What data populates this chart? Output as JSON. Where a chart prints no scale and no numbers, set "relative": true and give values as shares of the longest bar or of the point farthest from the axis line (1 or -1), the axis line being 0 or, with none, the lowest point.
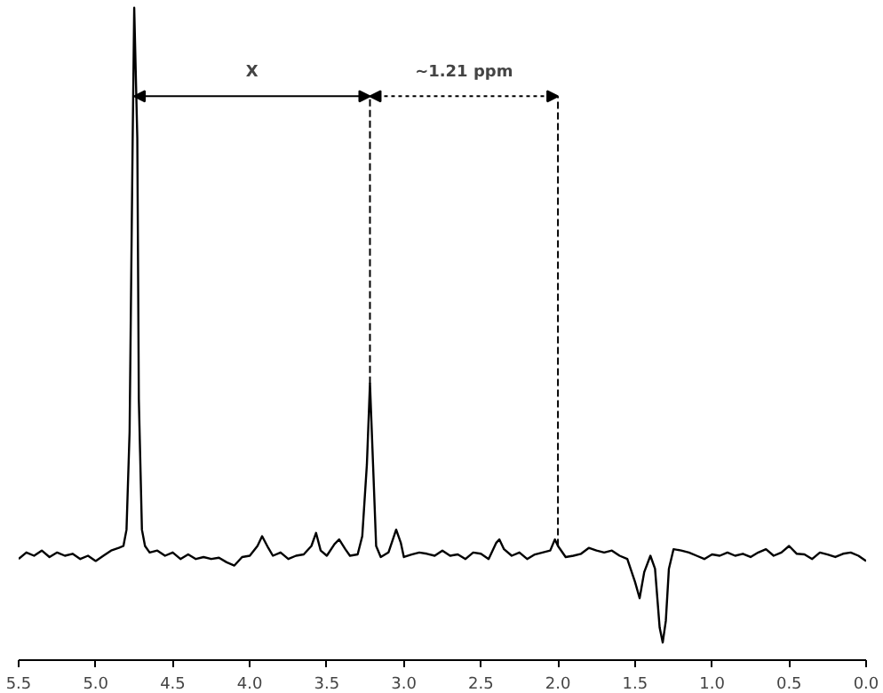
{
  "chart_data": {
    "type": "line",
    "relative": true,
    "color": "#000000",
    "x": [
      5.5,
      5.45,
      5.4,
      5.35,
      5.3,
      5.25,
      5.2,
      5.15,
      5.1,
      5.05,
      5.0,
      4.95,
      4.9,
      4.85,
      4.82,
      4.8,
      4.78,
      4.76,
      4.75,
      4.73,
      4.72,
      4.7,
      4.68,
      4.65,
      4.6,
      4.55,
      4.5,
      4.45,
      4.4,
      4.35,
      4.3,
      4.25,
      4.2,
      4.15,
      4.1,
      4.05,
      4.0,
      3.95,
      3.92,
      3.88,
      3.85,
      3.8,
      3.75,
      3.7,
      3.65,
      3.6,
      3.57,
      3.54,
      3.5,
      3.45,
      3.42,
      3.38,
      3.35,
      3.3,
      3.27,
      3.24,
      3.22,
      3.2,
      3.18,
      3.15,
      3.1,
      3.05,
      3.02,
      3.0,
      2.95,
      2.9,
      2.85,
      2.8,
      2.75,
      2.7,
      2.65,
      2.6,
      2.55,
      2.5,
      2.45,
      2.4,
      2.38,
      2.35,
      2.3,
      2.25,
      2.2,
      2.15,
      2.1,
      2.05,
      2.02,
      2.0,
      1.95,
      1.9,
      1.85,
      1.8,
      1.75,
      1.7,
      1.65,
      1.6,
      1.55,
      1.5,
      1.47,
      1.44,
      1.4,
      1.37,
      1.34,
      1.32,
      1.3,
      1.28,
      1.25,
      1.2,
      1.15,
      1.1,
      1.05,
      1.0,
      0.95,
      0.9,
      0.85,
      0.8,
      0.75,
      0.7,
      0.65,
      0.6,
      0.55,
      0.5,
      0.45,
      0.4,
      0.35,
      0.3,
      0.25,
      0.2,
      0.15,
      0.1,
      0.05,
      0.0
    ],
    "values": [
      0.155,
      0.165,
      0.16,
      0.168,
      0.158,
      0.165,
      0.16,
      0.163,
      0.155,
      0.16,
      0.152,
      0.16,
      0.168,
      0.172,
      0.175,
      0.2,
      0.35,
      0.8,
      1.0,
      0.8,
      0.4,
      0.2,
      0.175,
      0.165,
      0.168,
      0.16,
      0.165,
      0.155,
      0.162,
      0.155,
      0.158,
      0.155,
      0.157,
      0.15,
      0.145,
      0.158,
      0.16,
      0.175,
      0.19,
      0.172,
      0.16,
      0.165,
      0.155,
      0.16,
      0.162,
      0.175,
      0.195,
      0.168,
      0.16,
      0.178,
      0.185,
      0.17,
      0.16,
      0.162,
      0.19,
      0.3,
      0.424,
      0.3,
      0.175,
      0.158,
      0.165,
      0.2,
      0.18,
      0.158,
      0.162,
      0.165,
      0.163,
      0.16,
      0.168,
      0.16,
      0.162,
      0.155,
      0.165,
      0.163,
      0.155,
      0.18,
      0.185,
      0.17,
      0.16,
      0.165,
      0.155,
      0.162,
      0.165,
      0.168,
      0.185,
      0.175,
      0.158,
      0.16,
      0.163,
      0.172,
      0.168,
      0.165,
      0.168,
      0.16,
      0.155,
      0.12,
      0.095,
      0.135,
      0.16,
      0.14,
      0.05,
      0.027,
      0.06,
      0.14,
      0.17,
      0.168,
      0.165,
      0.16,
      0.155,
      0.162,
      0.16,
      0.165,
      0.16,
      0.163,
      0.158,
      0.165,
      0.17,
      0.16,
      0.165,
      0.175,
      0.163,
      0.162,
      0.155,
      0.165,
      0.162,
      0.158,
      0.163,
      0.165,
      0.16,
      0.152
    ],
    "xlim": [
      5.5,
      0.0
    ],
    "xticks": [
      5.5,
      {
        "value": 5,
        "label": "5.0"
      },
      4.5,
      {
        "value": 4,
        "label": "4.0"
      },
      3.5,
      {
        "value": 3,
        "label": "3.0"
      },
      2.5,
      {
        "value": 2,
        "label": "2.0"
      },
      1.5,
      {
        "value": 1,
        "label": "1.0"
      },
      0.5,
      {
        "value": 0,
        "label": "0.0"
      }
    ],
    "tick_labels": "x",
    "grid": false,
    "marker": "none",
    "line_style": "solid",
    "annotations": [
      "X",
      "~1.21 ppm"
    ],
    "ref_lines": [
      {
        "axis": "x",
        "value": 3.22,
        "line_style": "dashed",
        "color": "#000000"
      },
      {
        "axis": "x",
        "value": 2.0,
        "line_style": "dashed",
        "color": "#000000"
      }
    ]
  }
}
